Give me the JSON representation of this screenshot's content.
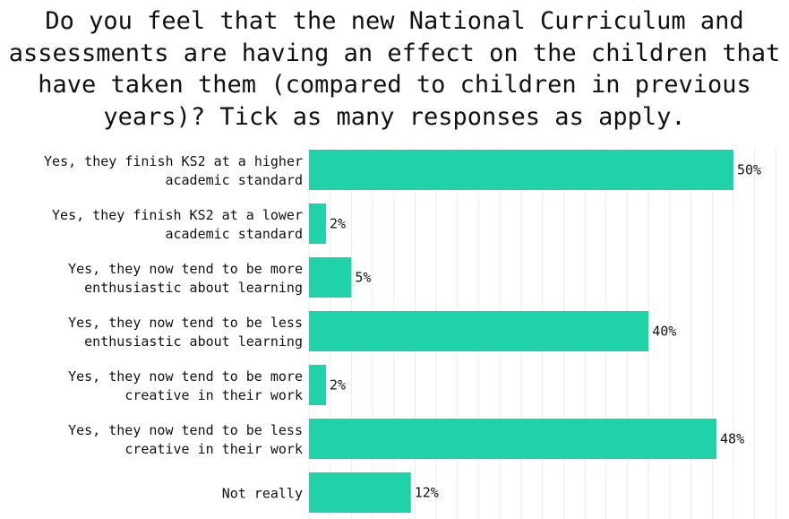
{
  "chart_data": {
    "type": "bar",
    "orientation": "horizontal",
    "title_lines": [
      "Do you feel that the new National Curriculum and",
      "assessments are having an effect on the children that",
      "have taken them (compared to children in previous",
      "years)? Tick as many responses as apply."
    ],
    "categories": [
      [
        "Yes, they finish KS2 at a higher",
        "academic standard"
      ],
      [
        "Yes, they finish KS2 at a lower",
        "academic standard"
      ],
      [
        "Yes, they now tend to be more",
        "enthusiastic about learning"
      ],
      [
        "Yes, they now tend to be less",
        "enthusiastic about learning"
      ],
      [
        "Yes, they now tend to be more",
        "creative in their work"
      ],
      [
        "Yes, they now tend to be less",
        "creative in their work"
      ],
      [
        "Not really"
      ]
    ],
    "values": [
      50,
      2,
      5,
      40,
      2,
      48,
      12
    ],
    "value_labels": [
      "50%",
      "2%",
      "5%",
      "40%",
      "2%",
      "48%",
      "12%"
    ],
    "xlim": [
      0,
      55
    ],
    "grid": "vertical",
    "bar_color": "#20d2a8",
    "xlabel": "",
    "ylabel": ""
  }
}
